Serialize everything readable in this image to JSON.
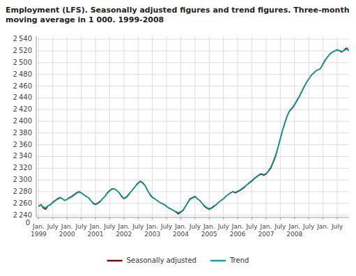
{
  "chart_data": {
    "type": "line",
    "title": "Employment (LFS). Seasonally adjusted figures and trend figures. Three-month\nmoving average in 1 000. 1999-2008",
    "categories": [
      "Jan.\n1999",
      null,
      null,
      null,
      null,
      null,
      "July",
      null,
      null,
      null,
      null,
      null,
      "Jan.\n2000",
      null,
      null,
      null,
      null,
      null,
      "July",
      null,
      null,
      null,
      null,
      null,
      "Jan.\n2001",
      null,
      null,
      null,
      null,
      null,
      "July",
      null,
      null,
      null,
      null,
      null,
      "Jan.\n2002",
      null,
      null,
      null,
      null,
      null,
      "July",
      null,
      null,
      null,
      null,
      null,
      "Jan.\n2003",
      null,
      null,
      null,
      null,
      null,
      "July",
      null,
      null,
      null,
      null,
      null,
      "Jan.\n2004",
      null,
      null,
      null,
      null,
      null,
      "July",
      null,
      null,
      null,
      null,
      null,
      "Jan.\n2005",
      null,
      null,
      null,
      null,
      null,
      "July",
      null,
      null,
      null,
      null,
      null,
      "Jan.\n2006",
      null,
      null,
      null,
      null,
      null,
      "July",
      null,
      null,
      null,
      null,
      null,
      "Jan.\n2007",
      null,
      null,
      null,
      null,
      null,
      "July",
      null,
      null,
      null,
      null,
      null,
      "Jan.\n2008",
      null,
      null,
      null,
      null,
      null,
      "July",
      null,
      null,
      null,
      null,
      null,
      "Jan.",
      null,
      null,
      null,
      null,
      null,
      "July",
      null,
      null,
      null,
      null,
      null
    ],
    "series": [
      {
        "name": "Seasonally adjusted",
        "color": "#8B0000",
        "values": [
          2255,
          2258,
          2252,
          2250,
          2256,
          2258,
          2262,
          2265,
          2268,
          2270,
          2268,
          2265,
          2267,
          2270,
          2272,
          2275,
          2278,
          2280,
          2278,
          2275,
          2272,
          2270,
          2265,
          2260,
          2258,
          2260,
          2263,
          2268,
          2272,
          2278,
          2282,
          2285,
          2285,
          2282,
          2278,
          2272,
          2268,
          2270,
          2275,
          2280,
          2285,
          2290,
          2295,
          2298,
          2295,
          2290,
          2282,
          2275,
          2270,
          2268,
          2265,
          2262,
          2260,
          2258,
          2255,
          2252,
          2250,
          2248,
          2245,
          2242,
          2245,
          2248,
          2255,
          2262,
          2268,
          2270,
          2272,
          2268,
          2265,
          2260,
          2255,
          2252,
          2250,
          2252,
          2255,
          2258,
          2262,
          2265,
          2268,
          2272,
          2275,
          2278,
          2280,
          2278,
          2280,
          2282,
          2285,
          2288,
          2292,
          2295,
          2298,
          2302,
          2305,
          2308,
          2310,
          2308,
          2310,
          2315,
          2320,
          2330,
          2340,
          2355,
          2370,
          2385,
          2398,
          2410,
          2418,
          2422,
          2428,
          2435,
          2442,
          2450,
          2458,
          2466,
          2472,
          2478,
          2482,
          2486,
          2488,
          2490,
          2498,
          2505,
          2510,
          2515,
          2518,
          2520,
          2522,
          2520,
          2518,
          2522,
          2525,
          2520
        ]
      },
      {
        "name": "Trend",
        "color": "#00AAAA",
        "values": [
          2255,
          2257,
          2254,
          2253,
          2256,
          2258,
          2261,
          2264,
          2267,
          2269,
          2268,
          2265,
          2267,
          2269,
          2271,
          2274,
          2277,
          2279,
          2278,
          2275,
          2272,
          2270,
          2265,
          2261,
          2259,
          2261,
          2264,
          2268,
          2272,
          2277,
          2281,
          2284,
          2285,
          2282,
          2278,
          2273,
          2269,
          2271,
          2276,
          2280,
          2285,
          2290,
          2294,
          2297,
          2294,
          2290,
          2282,
          2276,
          2271,
          2268,
          2265,
          2262,
          2260,
          2258,
          2255,
          2252,
          2250,
          2248,
          2246,
          2244,
          2246,
          2249,
          2255,
          2261,
          2267,
          2269,
          2271,
          2268,
          2265,
          2260,
          2256,
          2253,
          2251,
          2253,
          2256,
          2258,
          2262,
          2265,
          2268,
          2272,
          2275,
          2278,
          2280,
          2279,
          2281,
          2283,
          2286,
          2289,
          2292,
          2296,
          2299,
          2303,
          2306,
          2309,
          2311,
          2309,
          2311,
          2316,
          2322,
          2332,
          2342,
          2356,
          2371,
          2386,
          2399,
          2411,
          2419,
          2423,
          2429,
          2436,
          2443,
          2451,
          2459,
          2466,
          2472,
          2478,
          2482,
          2486,
          2488,
          2490,
          2497,
          2504,
          2510,
          2515,
          2518,
          2520,
          2521,
          2521,
          2519,
          2521,
          2523,
          2521
        ]
      }
    ],
    "ylim": [
      2236,
      2545
    ],
    "yticks": [
      {
        "value": 2240,
        "label": "2 240"
      },
      {
        "value": 2260,
        "label": "2 260"
      },
      {
        "value": 2280,
        "label": "2 280"
      },
      {
        "value": 2300,
        "label": "2 300"
      },
      {
        "value": 2320,
        "label": "2 320"
      },
      {
        "value": 2340,
        "label": "2 340"
      },
      {
        "value": 2360,
        "label": "2 360"
      },
      {
        "value": 2380,
        "label": "2 380"
      },
      {
        "value": 2400,
        "label": "2 400"
      },
      {
        "value": 2420,
        "label": "2 420"
      },
      {
        "value": 2440,
        "label": "2 440"
      },
      {
        "value": 2460,
        "label": "2 460"
      },
      {
        "value": 2480,
        "label": "2 480"
      },
      {
        "value": 2500,
        "label": "2 500"
      },
      {
        "value": 2520,
        "label": "2 520"
      },
      {
        "value": 2540,
        "label": "2 540"
      }
    ],
    "annotations": [
      {
        "text": "0"
      }
    ],
    "grid": true,
    "legend": "bottom"
  }
}
